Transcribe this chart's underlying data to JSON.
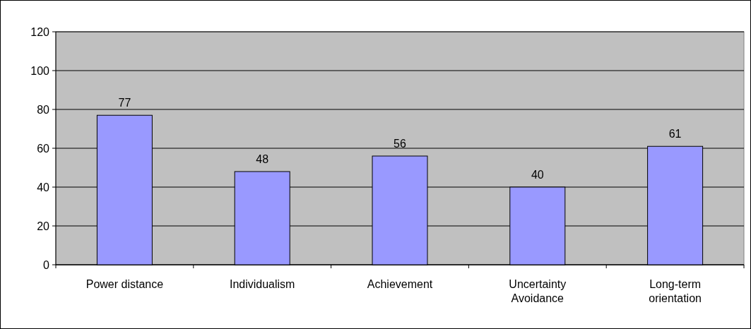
{
  "chart_data": {
    "type": "bar",
    "categories": [
      "Power distance",
      "Individualism",
      "Achievement",
      "Uncertainty Avoidance",
      "Long-term orientation"
    ],
    "values": [
      77,
      48,
      56,
      40,
      61
    ],
    "color": "#9999ff",
    "ylim": [
      0,
      120
    ],
    "yticks": [
      0,
      20,
      40,
      60,
      80,
      100,
      120
    ],
    "grid": "y",
    "data_labels": true
  }
}
